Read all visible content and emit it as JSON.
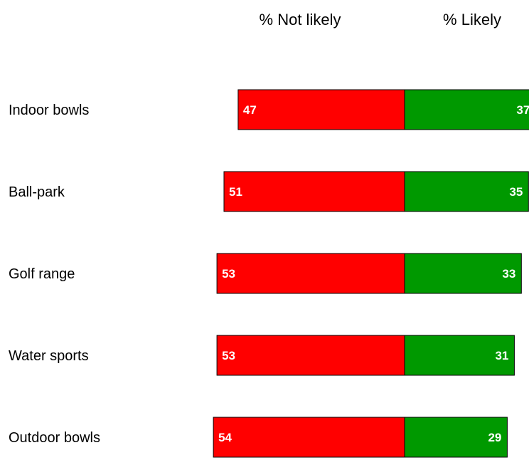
{
  "chart_data": {
    "type": "bar",
    "orientation": "horizontal-diverging",
    "categories": [
      "Indoor bowls",
      "Ball-park",
      "Golf range",
      "Water sports",
      "Outdoor bowls"
    ],
    "series": [
      {
        "name": "% Not likely",
        "values": [
          47,
          51,
          53,
          53,
          54
        ],
        "color": "#ff0000",
        "direction": "left"
      },
      {
        "name": "% Likely",
        "values": [
          37,
          35,
          33,
          31,
          29
        ],
        "color": "#009900",
        "direction": "right"
      }
    ],
    "bar_outline_color": "#000000",
    "value_label_color": "#ffffff",
    "value_axis": "hidden",
    "grid": false,
    "legend": "top"
  }
}
